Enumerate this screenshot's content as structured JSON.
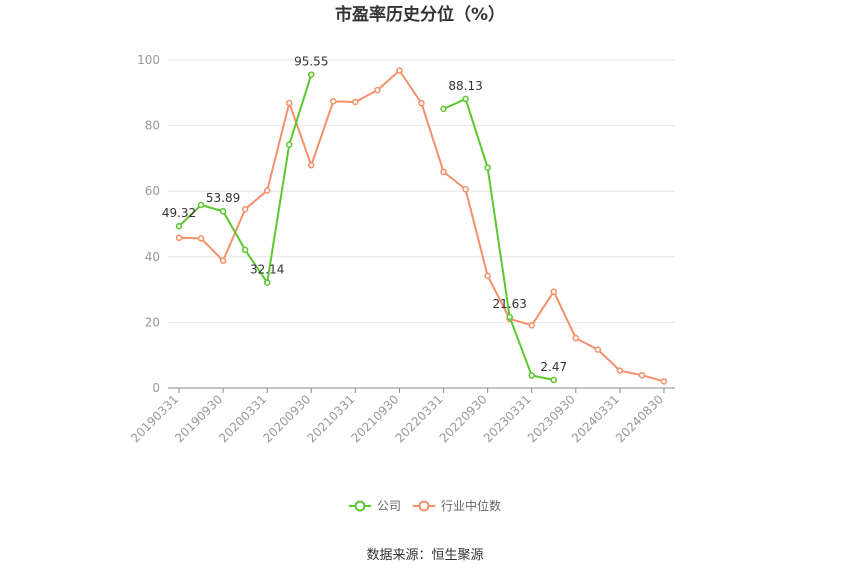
{
  "chart_data": {
    "type": "line",
    "title": "市盈率历史分位（%）",
    "source": "数据来源：恒生聚源",
    "xlabel": "",
    "ylabel": "",
    "ylim": [
      0,
      100
    ],
    "yticks": [
      "0",
      "20",
      "40",
      "60",
      "80",
      "100"
    ],
    "categories": [
      "20190331",
      "20190630",
      "20190930",
      "20191231",
      "20200331",
      "20200630",
      "20200930",
      "20201231",
      "20210331",
      "20210630",
      "20210930",
      "20211231",
      "20220331",
      "20220630",
      "20220930",
      "20221231",
      "20230331",
      "20230630",
      "20230930",
      "20231231",
      "20240331",
      "20240630",
      "20240830"
    ],
    "xticks": [
      "20190331",
      "20190930",
      "20200331",
      "20200930",
      "20210331",
      "20210930",
      "20220331",
      "20220930",
      "20230331",
      "20230930",
      "20240331",
      "20240830"
    ],
    "grid": true,
    "legend_position": "bottom",
    "series": [
      {
        "name": "公司",
        "color": "#5cc72e",
        "values": [
          49.32,
          55.8,
          53.89,
          42.1,
          32.14,
          74.2,
          95.55,
          null,
          null,
          null,
          null,
          null,
          85.1,
          88.13,
          67.2,
          21.63,
          3.8,
          2.47,
          null,
          null,
          null,
          null,
          null
        ],
        "labels": [
          {
            "index": 0,
            "text": "49.32"
          },
          {
            "index": 2,
            "text": "53.89"
          },
          {
            "index": 4,
            "text": "32.14"
          },
          {
            "index": 6,
            "text": "95.55"
          },
          {
            "index": 13,
            "text": "88.13"
          },
          {
            "index": 15,
            "text": "21.63"
          },
          {
            "index": 17,
            "text": "2.47"
          }
        ]
      },
      {
        "name": "行业中位数",
        "color": "#f4906a",
        "values": [
          45.8,
          45.6,
          38.8,
          54.5,
          60.2,
          86.9,
          67.9,
          87.4,
          87.2,
          90.8,
          96.8,
          86.8,
          65.9,
          60.6,
          34.2,
          21.1,
          19.1,
          29.4,
          15.2,
          11.7,
          5.3,
          3.9,
          2.0
        ]
      }
    ]
  }
}
